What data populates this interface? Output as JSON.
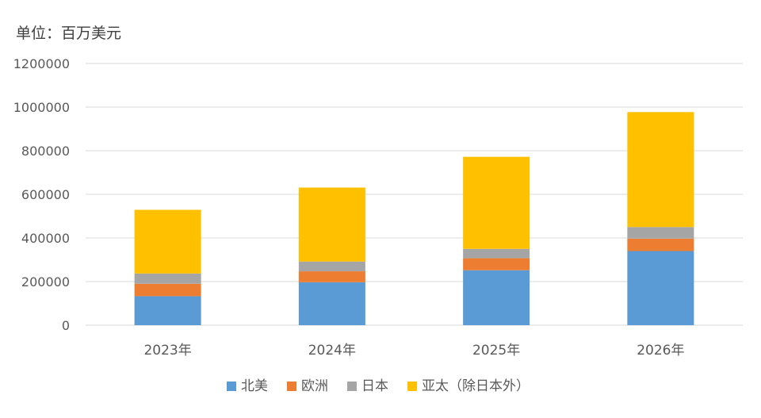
{
  "chart_data": {
    "type": "bar",
    "stacked": true,
    "unit_label": "单位：百万美元",
    "categories": [
      "2023年",
      "2024年",
      "2025年",
      "2026年"
    ],
    "series": [
      {
        "name": "北美",
        "color": "#5b9bd5",
        "values": [
          133000,
          197000,
          252000,
          340000
        ]
      },
      {
        "name": "欧洲",
        "color": "#ed7d31",
        "values": [
          57000,
          50000,
          55000,
          57000
        ]
      },
      {
        "name": "日本",
        "color": "#a5a5a5",
        "values": [
          47000,
          45000,
          43000,
          53000
        ]
      },
      {
        "name": "亚太（除日本外）",
        "color": "#ffc000",
        "values": [
          292000,
          339000,
          422000,
          527000
        ]
      }
    ],
    "ylim": [
      0,
      1200000
    ],
    "yticks": [
      0,
      200000,
      400000,
      600000,
      800000,
      1000000,
      1200000
    ],
    "ytick_labels": [
      "0",
      "200000",
      "400000",
      "600000",
      "800000",
      "1000000",
      "1200000"
    ],
    "grid": true,
    "legend_position": "bottom"
  }
}
